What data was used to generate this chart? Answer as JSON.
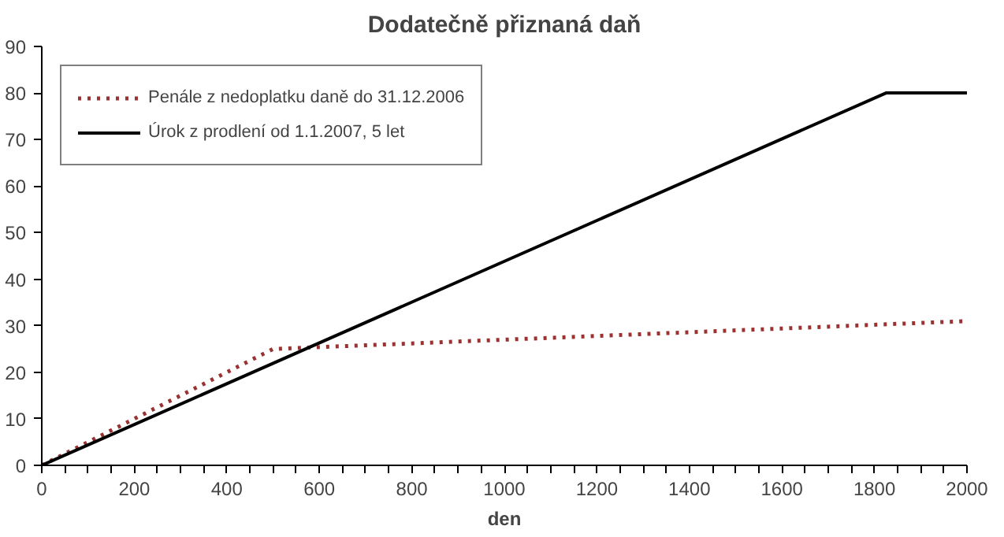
{
  "chart_data": {
    "type": "line",
    "title": "Dodatečně přiznaná daň",
    "xlabel": "den",
    "xlim": [
      0,
      2000
    ],
    "ylim": [
      0,
      90
    ],
    "xticks": [
      0,
      {
        "value": 50,
        "label": null
      },
      {
        "value": 100,
        "label": null
      },
      {
        "value": 150,
        "label": null
      },
      200,
      {
        "value": 250,
        "label": null
      },
      {
        "value": 300,
        "label": null
      },
      {
        "value": 350,
        "label": null
      },
      400,
      {
        "value": 450,
        "label": null
      },
      {
        "value": 500,
        "label": null
      },
      {
        "value": 550,
        "label": null
      },
      600,
      {
        "value": 650,
        "label": null
      },
      {
        "value": 700,
        "label": null
      },
      {
        "value": 750,
        "label": null
      },
      800,
      {
        "value": 850,
        "label": null
      },
      {
        "value": 900,
        "label": null
      },
      {
        "value": 950,
        "label": null
      },
      1000,
      {
        "value": 1050,
        "label": null
      },
      {
        "value": 1100,
        "label": null
      },
      {
        "value": 1150,
        "label": null
      },
      1200,
      {
        "value": 1250,
        "label": null
      },
      {
        "value": 1300,
        "label": null
      },
      {
        "value": 1350,
        "label": null
      },
      1400,
      {
        "value": 1450,
        "label": null
      },
      {
        "value": 1500,
        "label": null
      },
      {
        "value": 1550,
        "label": null
      },
      1600,
      {
        "value": 1650,
        "label": null
      },
      {
        "value": 1700,
        "label": null
      },
      {
        "value": 1750,
        "label": null
      },
      1800,
      {
        "value": 1850,
        "label": null
      },
      {
        "value": 1900,
        "label": null
      },
      {
        "value": 1950,
        "label": null
      },
      2000
    ],
    "yticks": [
      0,
      10,
      20,
      30,
      40,
      50,
      60,
      70,
      80,
      90
    ],
    "grid": false,
    "legend": "top left",
    "series": [
      {
        "name": "Penále z nedoplatku daně do 31.12.2006",
        "color": "#993333",
        "line_style": "dotted",
        "x": [
          0,
          500,
          2000
        ],
        "values": [
          0,
          25,
          31
        ]
      },
      {
        "name": "Úrok z prodlení od 1.1.2007, 5 let",
        "color": "#000000",
        "line_style": "solid",
        "x": [
          0,
          1825,
          2000
        ],
        "values": [
          0,
          80,
          80
        ]
      }
    ]
  }
}
